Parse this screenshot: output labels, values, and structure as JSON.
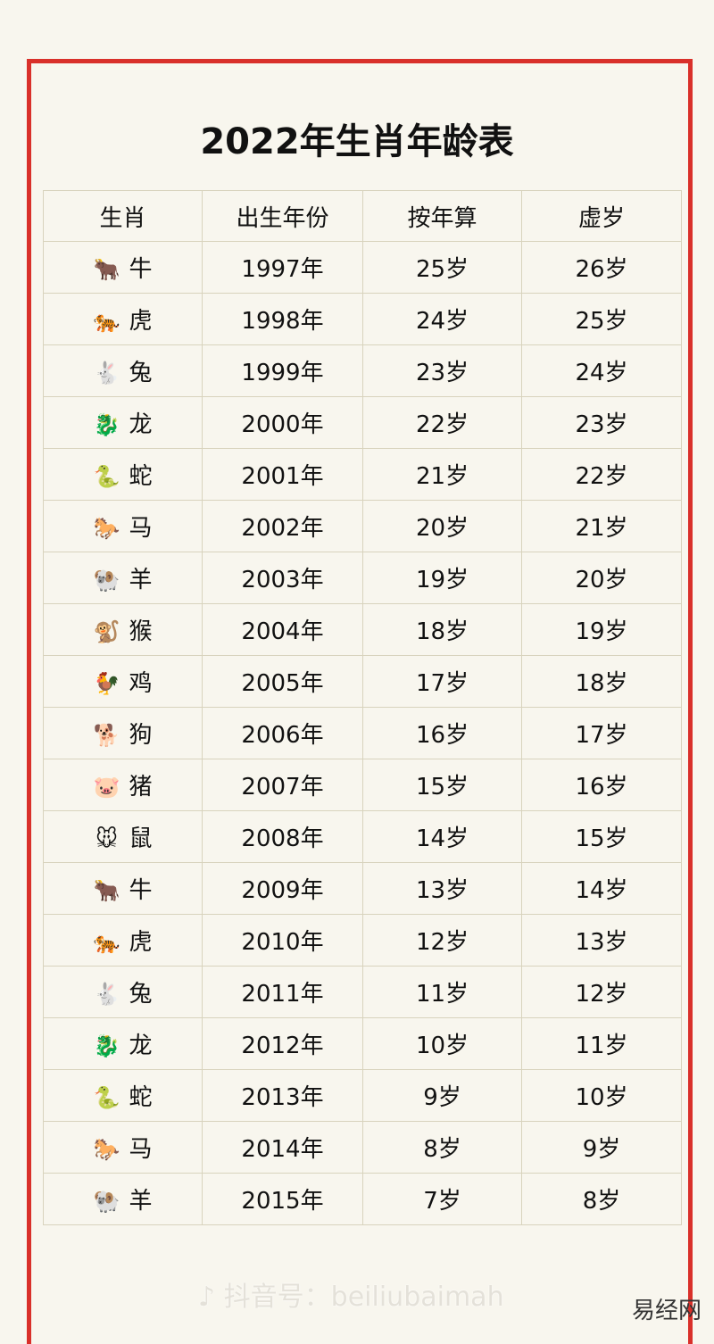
{
  "title": "2022年生肖年龄表",
  "headers": [
    "生肖",
    "出生年份",
    "按年算",
    "虚岁"
  ],
  "rows": [
    {
      "icon": "ox-icon",
      "emoji": "🐂",
      "zodiac": "牛",
      "year": "1997年",
      "age": "25岁",
      "nominal": "26岁"
    },
    {
      "icon": "tiger-icon",
      "emoji": "🐅",
      "zodiac": "虎",
      "year": "1998年",
      "age": "24岁",
      "nominal": "25岁"
    },
    {
      "icon": "rabbit-icon",
      "emoji": "🐇",
      "zodiac": "兔",
      "year": "1999年",
      "age": "23岁",
      "nominal": "24岁"
    },
    {
      "icon": "dragon-icon",
      "emoji": "🐉",
      "zodiac": "龙",
      "year": "2000年",
      "age": "22岁",
      "nominal": "23岁"
    },
    {
      "icon": "snake-icon",
      "emoji": "🐍",
      "zodiac": "蛇",
      "year": "2001年",
      "age": "21岁",
      "nominal": "22岁"
    },
    {
      "icon": "horse-icon",
      "emoji": "🐎",
      "zodiac": "马",
      "year": "2002年",
      "age": "20岁",
      "nominal": "21岁"
    },
    {
      "icon": "ram-icon",
      "emoji": "🐏",
      "zodiac": "羊",
      "year": "2003年",
      "age": "19岁",
      "nominal": "20岁"
    },
    {
      "icon": "monkey-icon",
      "emoji": "🐒",
      "zodiac": "猴",
      "year": "2004年",
      "age": "18岁",
      "nominal": "19岁"
    },
    {
      "icon": "rooster-icon",
      "emoji": "🐓",
      "zodiac": "鸡",
      "year": "2005年",
      "age": "17岁",
      "nominal": "18岁"
    },
    {
      "icon": "dog-icon",
      "emoji": "🐕",
      "zodiac": "狗",
      "year": "2006年",
      "age": "16岁",
      "nominal": "17岁"
    },
    {
      "icon": "pig-icon",
      "emoji": "🐷",
      "zodiac": "猪",
      "year": "2007年",
      "age": "15岁",
      "nominal": "16岁"
    },
    {
      "icon": "rat-icon",
      "emoji": "🐭",
      "zodiac": "鼠",
      "year": "2008年",
      "age": "14岁",
      "nominal": "15岁"
    },
    {
      "icon": "ox-icon",
      "emoji": "🐂",
      "zodiac": "牛",
      "year": "2009年",
      "age": "13岁",
      "nominal": "14岁"
    },
    {
      "icon": "tiger-icon",
      "emoji": "🐅",
      "zodiac": "虎",
      "year": "2010年",
      "age": "12岁",
      "nominal": "13岁"
    },
    {
      "icon": "rabbit-icon",
      "emoji": "🐇",
      "zodiac": "兔",
      "year": "2011年",
      "age": "11岁",
      "nominal": "12岁"
    },
    {
      "icon": "dragon-icon",
      "emoji": "🐉",
      "zodiac": "龙",
      "year": "2012年",
      "age": "10岁",
      "nominal": "11岁"
    },
    {
      "icon": "snake-icon",
      "emoji": "🐍",
      "zodiac": "蛇",
      "year": "2013年",
      "age": "9岁",
      "nominal": "10岁"
    },
    {
      "icon": "horse-icon",
      "emoji": "🐎",
      "zodiac": "马",
      "year": "2014年",
      "age": "8岁",
      "nominal": "9岁"
    },
    {
      "icon": "ram-icon",
      "emoji": "🐏",
      "zodiac": "羊",
      "year": "2015年",
      "age": "7岁",
      "nominal": "8岁"
    }
  ],
  "watermark": "♪ 抖音号：beiliubaimah",
  "site_logo": "易经网",
  "colors": {
    "frame": "#d9302a",
    "background": "#f8f6ee",
    "grid": "#d8d3bd"
  }
}
